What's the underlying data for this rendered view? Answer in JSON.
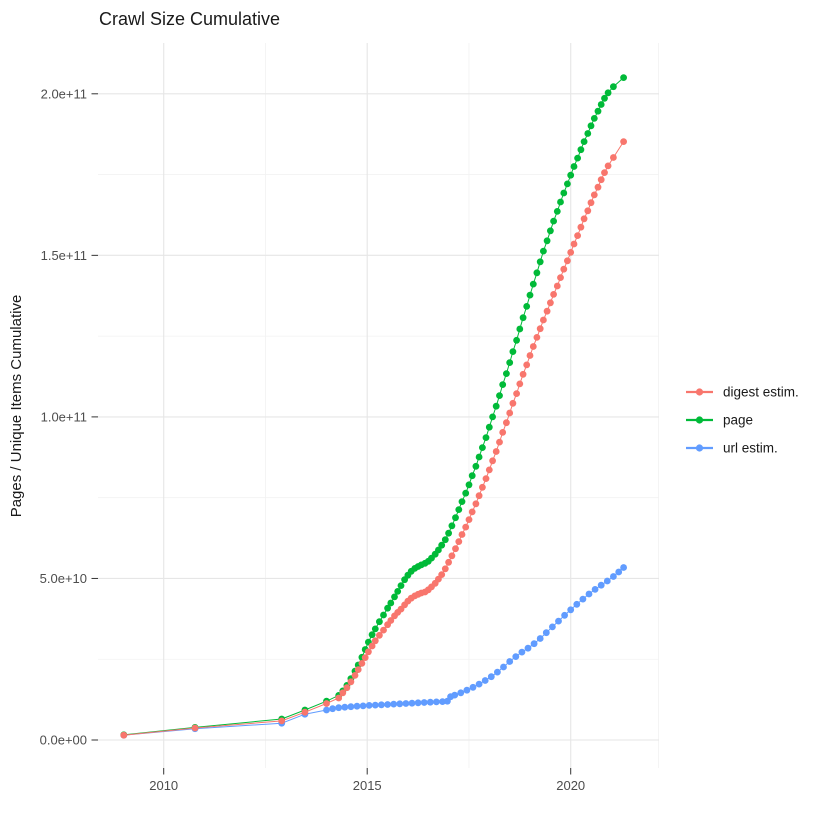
{
  "title": "Crawl Size Cumulative",
  "axes": {
    "y_title": "Pages / Unique Items Cumulative",
    "x_tick_labels": [
      "2010",
      "2015",
      "2020"
    ],
    "y_tick_labels": [
      "0.0e+00",
      "5.0e+10",
      "1.0e+11",
      "1.5e+11",
      "2.0e+11"
    ]
  },
  "legend": {
    "items": [
      {
        "label": "digest estim.",
        "color": "#F8766D"
      },
      {
        "label": "page",
        "color": "#00BA38"
      },
      {
        "label": "url estim.",
        "color": "#619CFF"
      }
    ]
  },
  "colors": {
    "digest": "#F8766D",
    "page": "#00BA38",
    "url": "#619CFF",
    "grid_major": "#E6E6E6",
    "grid_minor": "#F2F2F2",
    "tick": "#333333",
    "tick_text": "#4d4d4d",
    "text": "#1a1a1a",
    "background": "#ffffff"
  },
  "chart_data": {
    "type": "line",
    "title": "Crawl Size Cumulative",
    "xlabel": "",
    "ylabel": "Pages / Unique Items Cumulative",
    "points_unit": "each point is [decimal_year, cumulative_count_in_billions_1e9]",
    "x_ticks": {
      "years": [
        2010,
        2015,
        2020
      ],
      "labels": [
        "2010",
        "2015",
        "2020"
      ]
    },
    "y_ticks": {
      "values_e9": [
        0,
        50,
        100,
        150,
        200
      ],
      "labels": [
        "0.0e+00",
        "5.0e+10",
        "1.0e+11",
        "1.5e+11",
        "2.0e+11"
      ]
    },
    "x_minor_years": [
      2012.5,
      2017.5
    ],
    "xlim_years": [
      2008.4,
      2021.95
    ],
    "ylim": [
      0,
      215000000000
    ],
    "grid": true,
    "legend_position": "right-center",
    "marker": "point-with-line",
    "series": [
      {
        "name": "digest estim.",
        "color": "#F8766D",
        "points": [
          [
            2009.02,
            1.5
          ],
          [
            2010.77,
            3.7
          ],
          [
            2012.9,
            5.9
          ],
          [
            2013.47,
            8.6
          ],
          [
            2014.0,
            11.3
          ],
          [
            2014.3,
            13.0
          ],
          [
            2014.4,
            14.6
          ],
          [
            2014.5,
            16.2
          ],
          [
            2014.6,
            18.0
          ],
          [
            2014.7,
            20.0
          ],
          [
            2014.78,
            21.8
          ],
          [
            2014.87,
            23.7
          ],
          [
            2014.95,
            25.5
          ],
          [
            2015.03,
            27.3
          ],
          [
            2015.12,
            29.1
          ],
          [
            2015.2,
            30.7
          ],
          [
            2015.3,
            32.4
          ],
          [
            2015.4,
            34.0
          ],
          [
            2015.5,
            35.7
          ],
          [
            2015.58,
            37.0
          ],
          [
            2015.67,
            38.4
          ],
          [
            2015.75,
            39.5
          ],
          [
            2015.83,
            40.5
          ],
          [
            2015.92,
            41.8
          ],
          [
            2016.0,
            43.0
          ],
          [
            2016.08,
            43.9
          ],
          [
            2016.17,
            44.6
          ],
          [
            2016.25,
            45.1
          ],
          [
            2016.33,
            45.5
          ],
          [
            2016.42,
            45.8
          ],
          [
            2016.5,
            46.5
          ],
          [
            2016.58,
            47.4
          ],
          [
            2016.67,
            48.5
          ],
          [
            2016.75,
            49.8
          ],
          [
            2016.83,
            51.2
          ],
          [
            2016.92,
            53.0
          ],
          [
            2017.0,
            55.0
          ],
          [
            2017.08,
            57.0
          ],
          [
            2017.17,
            59.2
          ],
          [
            2017.25,
            61.4
          ],
          [
            2017.33,
            63.6
          ],
          [
            2017.42,
            65.9
          ],
          [
            2017.5,
            68.2
          ],
          [
            2017.58,
            70.6
          ],
          [
            2017.67,
            73.1
          ],
          [
            2017.75,
            75.6
          ],
          [
            2017.83,
            78.2
          ],
          [
            2017.92,
            80.9
          ],
          [
            2018.0,
            83.6
          ],
          [
            2018.08,
            86.4
          ],
          [
            2018.17,
            89.3
          ],
          [
            2018.25,
            92.2
          ],
          [
            2018.33,
            95.2
          ],
          [
            2018.42,
            98.2
          ],
          [
            2018.5,
            101.2
          ],
          [
            2018.58,
            104.2
          ],
          [
            2018.67,
            107.2
          ],
          [
            2018.75,
            110.2
          ],
          [
            2018.83,
            113.2
          ],
          [
            2018.92,
            116.1
          ],
          [
            2019.0,
            119.0
          ],
          [
            2019.08,
            121.8
          ],
          [
            2019.17,
            124.6
          ],
          [
            2019.25,
            127.3
          ],
          [
            2019.33,
            130.0
          ],
          [
            2019.42,
            132.7
          ],
          [
            2019.5,
            135.3
          ],
          [
            2019.58,
            137.9
          ],
          [
            2019.67,
            140.5
          ],
          [
            2019.75,
            143.1
          ],
          [
            2019.83,
            145.7
          ],
          [
            2019.92,
            148.3
          ],
          [
            2020.0,
            150.9
          ],
          [
            2020.08,
            153.5
          ],
          [
            2020.17,
            156.1
          ],
          [
            2020.25,
            158.7
          ],
          [
            2020.33,
            161.3
          ],
          [
            2020.42,
            163.8
          ],
          [
            2020.5,
            166.3
          ],
          [
            2020.58,
            168.7
          ],
          [
            2020.67,
            171.1
          ],
          [
            2020.75,
            173.4
          ],
          [
            2020.83,
            175.6
          ],
          [
            2020.92,
            177.7
          ],
          [
            2021.05,
            180.3
          ],
          [
            2021.3,
            185.2
          ]
        ]
      },
      {
        "name": "page",
        "color": "#00BA38",
        "points": [
          [
            2009.02,
            1.6
          ],
          [
            2010.77,
            3.9
          ],
          [
            2012.9,
            6.5
          ],
          [
            2013.47,
            9.3
          ],
          [
            2014.0,
            12.0
          ],
          [
            2014.3,
            13.8
          ],
          [
            2014.4,
            15.2
          ],
          [
            2014.5,
            16.9
          ],
          [
            2014.6,
            19.0
          ],
          [
            2014.7,
            21.3
          ],
          [
            2014.78,
            23.2
          ],
          [
            2014.87,
            25.6
          ],
          [
            2014.95,
            28.0
          ],
          [
            2015.03,
            30.3
          ],
          [
            2015.12,
            32.6
          ],
          [
            2015.2,
            34.4
          ],
          [
            2015.3,
            36.6
          ],
          [
            2015.4,
            38.7
          ],
          [
            2015.5,
            40.8
          ],
          [
            2015.58,
            42.4
          ],
          [
            2015.67,
            44.3
          ],
          [
            2015.75,
            46.0
          ],
          [
            2015.83,
            47.8
          ],
          [
            2015.92,
            49.6
          ],
          [
            2016.0,
            51.0
          ],
          [
            2016.08,
            52.2
          ],
          [
            2016.17,
            53.1
          ],
          [
            2016.25,
            53.7
          ],
          [
            2016.33,
            54.2
          ],
          [
            2016.42,
            54.7
          ],
          [
            2016.5,
            55.3
          ],
          [
            2016.58,
            56.3
          ],
          [
            2016.67,
            57.5
          ],
          [
            2016.75,
            58.8
          ],
          [
            2016.83,
            60.3
          ],
          [
            2016.92,
            62.0
          ],
          [
            2017.0,
            64.0
          ],
          [
            2017.08,
            66.3
          ],
          [
            2017.17,
            68.8
          ],
          [
            2017.25,
            71.3
          ],
          [
            2017.33,
            73.8
          ],
          [
            2017.42,
            76.4
          ],
          [
            2017.5,
            79.0
          ],
          [
            2017.58,
            81.8
          ],
          [
            2017.67,
            84.7
          ],
          [
            2017.75,
            87.6
          ],
          [
            2017.83,
            90.5
          ],
          [
            2017.92,
            93.6
          ],
          [
            2018.0,
            96.8
          ],
          [
            2018.08,
            100.0
          ],
          [
            2018.17,
            103.3
          ],
          [
            2018.25,
            106.6
          ],
          [
            2018.33,
            110.0
          ],
          [
            2018.42,
            113.4
          ],
          [
            2018.5,
            116.8
          ],
          [
            2018.58,
            120.2
          ],
          [
            2018.67,
            123.7
          ],
          [
            2018.75,
            127.2
          ],
          [
            2018.83,
            130.7
          ],
          [
            2018.92,
            134.2
          ],
          [
            2019.0,
            137.7
          ],
          [
            2019.08,
            141.1
          ],
          [
            2019.17,
            144.6
          ],
          [
            2019.25,
            148.0
          ],
          [
            2019.33,
            151.3
          ],
          [
            2019.42,
            154.5
          ],
          [
            2019.5,
            157.6
          ],
          [
            2019.58,
            160.6
          ],
          [
            2019.67,
            163.6
          ],
          [
            2019.75,
            166.5
          ],
          [
            2019.83,
            169.3
          ],
          [
            2019.92,
            172.1
          ],
          [
            2020.0,
            174.8
          ],
          [
            2020.08,
            177.5
          ],
          [
            2020.17,
            180.1
          ],
          [
            2020.25,
            182.7
          ],
          [
            2020.33,
            185.2
          ],
          [
            2020.42,
            187.7
          ],
          [
            2020.5,
            190.1
          ],
          [
            2020.58,
            192.4
          ],
          [
            2020.67,
            194.6
          ],
          [
            2020.75,
            196.7
          ],
          [
            2020.83,
            198.6
          ],
          [
            2020.92,
            200.3
          ],
          [
            2021.05,
            202.2
          ],
          [
            2021.3,
            205.0
          ]
        ]
      },
      {
        "name": "url estim.",
        "color": "#619CFF",
        "points": [
          [
            2009.02,
            1.5
          ],
          [
            2010.77,
            3.5
          ],
          [
            2012.9,
            5.2
          ],
          [
            2013.47,
            8.0
          ],
          [
            2014.0,
            9.3
          ],
          [
            2014.15,
            9.7
          ],
          [
            2014.3,
            10.0
          ],
          [
            2014.45,
            10.15
          ],
          [
            2014.6,
            10.3
          ],
          [
            2014.75,
            10.45
          ],
          [
            2014.9,
            10.55
          ],
          [
            2015.05,
            10.7
          ],
          [
            2015.2,
            10.8
          ],
          [
            2015.35,
            10.9
          ],
          [
            2015.5,
            11.0
          ],
          [
            2015.65,
            11.1
          ],
          [
            2015.8,
            11.2
          ],
          [
            2015.95,
            11.3
          ],
          [
            2016.1,
            11.4
          ],
          [
            2016.25,
            11.5
          ],
          [
            2016.4,
            11.6
          ],
          [
            2016.55,
            11.7
          ],
          [
            2016.7,
            11.8
          ],
          [
            2016.85,
            11.9
          ],
          [
            2016.97,
            12.0
          ],
          [
            2017.05,
            13.4
          ],
          [
            2017.15,
            13.9
          ],
          [
            2017.3,
            14.6
          ],
          [
            2017.45,
            15.4
          ],
          [
            2017.6,
            16.3
          ],
          [
            2017.75,
            17.3
          ],
          [
            2017.9,
            18.4
          ],
          [
            2018.05,
            19.6
          ],
          [
            2018.2,
            21.0
          ],
          [
            2018.35,
            22.6
          ],
          [
            2018.5,
            24.3
          ],
          [
            2018.65,
            25.8
          ],
          [
            2018.8,
            27.2
          ],
          [
            2018.95,
            28.4
          ],
          [
            2019.1,
            29.8
          ],
          [
            2019.25,
            31.4
          ],
          [
            2019.4,
            33.2
          ],
          [
            2019.55,
            35.0
          ],
          [
            2019.7,
            36.8
          ],
          [
            2019.85,
            38.6
          ],
          [
            2020.0,
            40.3
          ],
          [
            2020.15,
            42.0
          ],
          [
            2020.3,
            43.6
          ],
          [
            2020.45,
            45.2
          ],
          [
            2020.6,
            46.6
          ],
          [
            2020.75,
            47.9
          ],
          [
            2020.9,
            49.2
          ],
          [
            2021.05,
            50.6
          ],
          [
            2021.18,
            52.0
          ],
          [
            2021.3,
            53.4
          ]
        ]
      }
    ]
  }
}
